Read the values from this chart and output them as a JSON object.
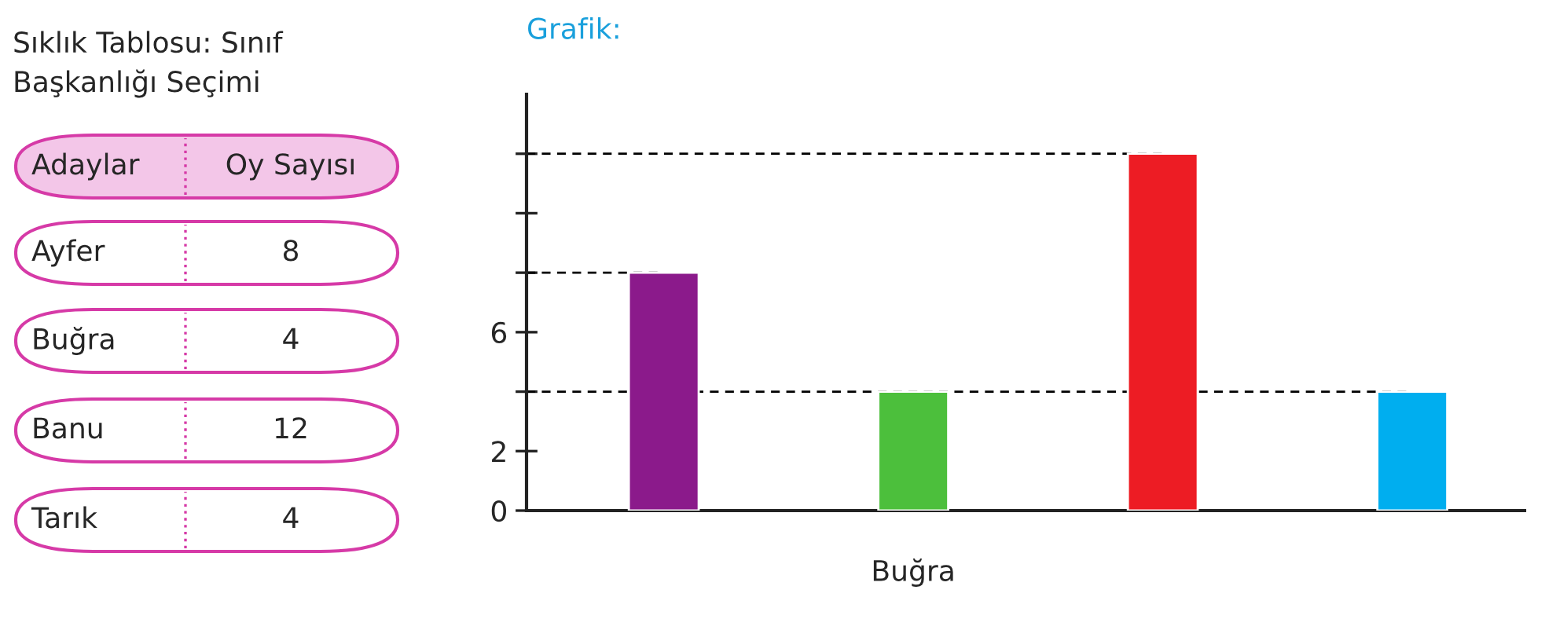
{
  "chart_data": {
    "type": "bar",
    "title": "Grafik:",
    "categories": [
      null,
      "Buğra",
      null,
      null
    ],
    "values": [
      8,
      4,
      12,
      4
    ],
    "colors": [
      "#8b1a8b",
      "#4cbf3c",
      "#ed1c24",
      "#00aeef"
    ],
    "ylim": [
      0,
      14
    ],
    "yticks": [
      0,
      2,
      {
        "value": 4,
        "label": null
      },
      6,
      {
        "value": 8,
        "label": null
      },
      {
        "value": 10,
        "label": null
      },
      {
        "value": 12,
        "label": null
      }
    ],
    "ref_lines": [
      {
        "axis": "y",
        "value": 8,
        "line_style": "dashed",
        "color": "#000000"
      },
      {
        "axis": "y",
        "value": 4,
        "line_style": "dashed",
        "color": "#000000"
      },
      {
        "axis": "y",
        "value": 12,
        "line_style": "dashed",
        "color": "#000000"
      }
    ],
    "annotations": [
      "Sıklık Tablosu: Sınıf Başkanlığı Seçimi",
      "Adaylar",
      "Oy Sayısı",
      "Ayfer",
      "8",
      "Buğra",
      "4",
      "Banu",
      "12",
      "Tarık",
      "4"
    ],
    "grid": false,
    "legend": false
  }
}
